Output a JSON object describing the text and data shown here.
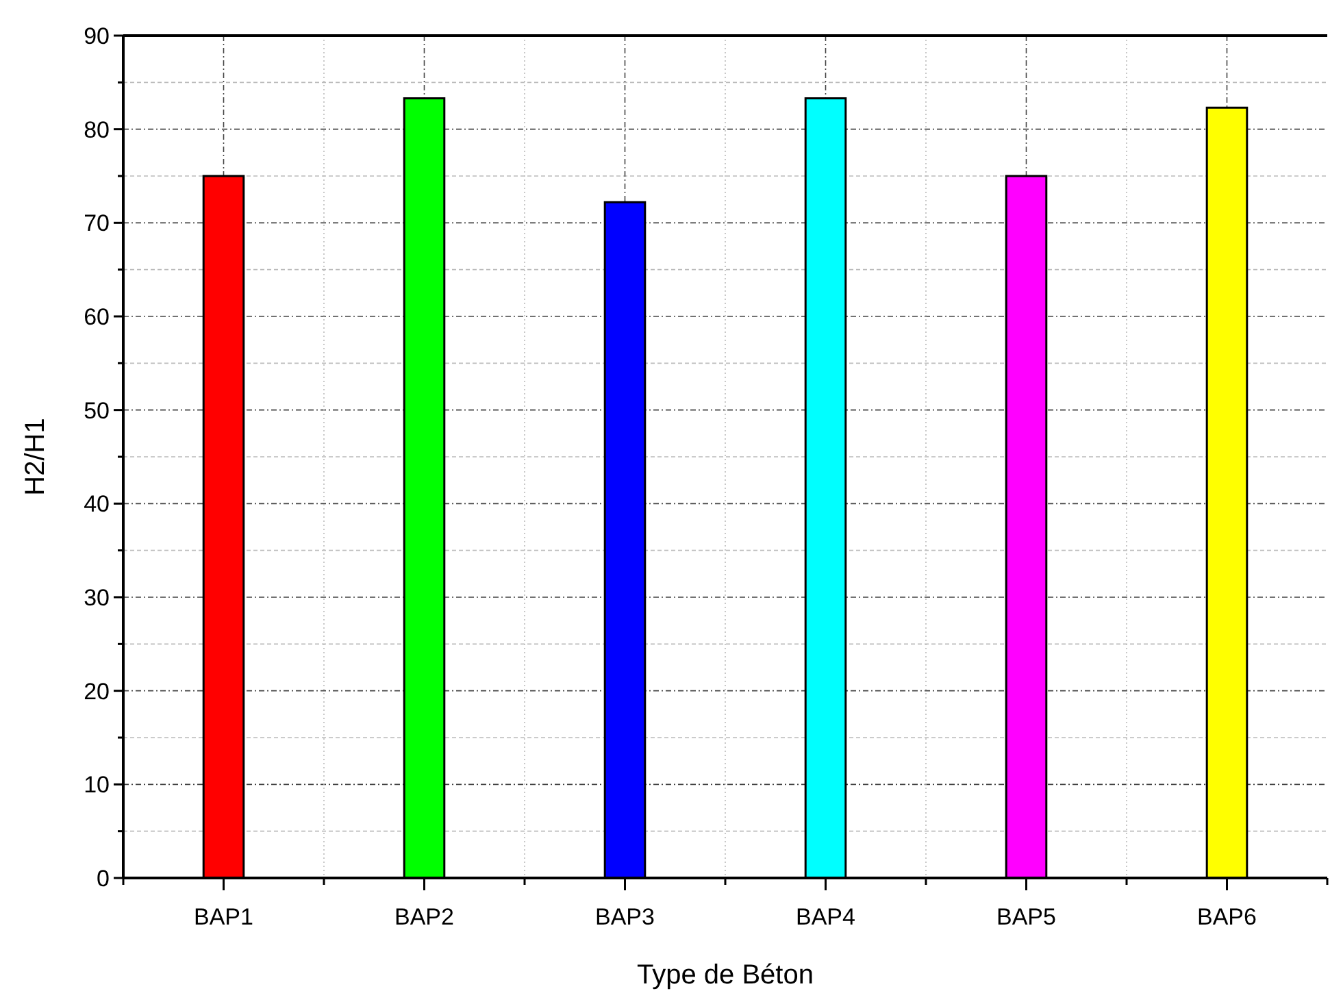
{
  "chart_data": {
    "type": "bar",
    "xlabel": "Type de Béton",
    "ylabel": "H2/H1",
    "categories": [
      "BAP1",
      "BAP2",
      "BAP3",
      "BAP4",
      "BAP5",
      "BAP6"
    ],
    "values": [
      75,
      83.3,
      72.2,
      83.3,
      75,
      82.3
    ],
    "colors": [
      "#ff0000",
      "#00ff00",
      "#0000ff",
      "#00ffff",
      "#ff00ff",
      "#ffff00"
    ],
    "ylim": [
      0,
      90
    ],
    "yticks": [
      0,
      {
        "value": 5,
        "label": null
      },
      10,
      {
        "value": 15,
        "label": null
      },
      20,
      {
        "value": 25,
        "label": null
      },
      30,
      {
        "value": 35,
        "label": null
      },
      40,
      {
        "value": 45,
        "label": null
      },
      50,
      {
        "value": 55,
        "label": null
      },
      60,
      {
        "value": 65,
        "label": null
      },
      70,
      {
        "value": 75,
        "label": null
      },
      80,
      {
        "value": 85,
        "label": null
      },
      90
    ],
    "grid": true
  }
}
